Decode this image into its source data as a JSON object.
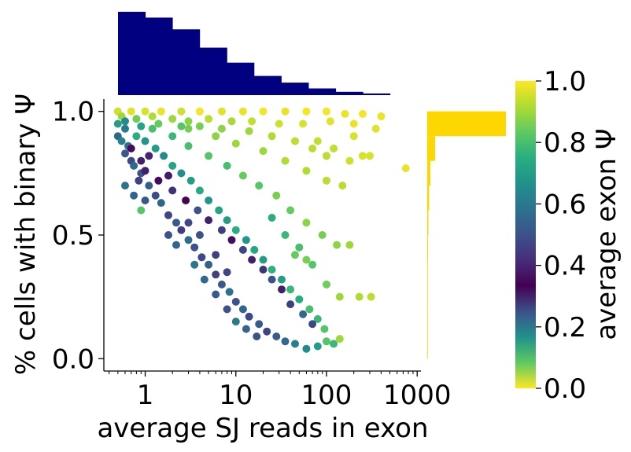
{
  "chart_data": {
    "type": "scatter",
    "title": "",
    "xlabel": "average SJ reads in exon",
    "ylabel": "% cells with binary Ψ",
    "colorbar_label": "average exon Ψ",
    "x_scale": "log",
    "xlim": [
      0.35,
      1100
    ],
    "ylim": [
      -0.05,
      1.05
    ],
    "x_ticks": [
      {
        "value": 1,
        "label": "1"
      },
      {
        "value": 10,
        "label": "10"
      },
      {
        "value": 100,
        "label": "100"
      },
      {
        "value": 1000,
        "label": "1000"
      }
    ],
    "y_ticks": [
      {
        "value": 0.0,
        "label": "0.0"
      },
      {
        "value": 0.5,
        "label": "0.5"
      },
      {
        "value": 1.0,
        "label": "1.0"
      }
    ],
    "colorbar_ticks": [
      {
        "value": 0.0,
        "label": "0.0"
      },
      {
        "value": 0.2,
        "label": "0.2"
      },
      {
        "value": 0.4,
        "label": "0.4"
      },
      {
        "value": 0.6,
        "label": "0.6"
      },
      {
        "value": 0.8,
        "label": "0.8"
      },
      {
        "value": 1.0,
        "label": "1.0"
      }
    ],
    "colormap": [
      "#fde725",
      "#5ec962",
      "#21918c",
      "#3b528b",
      "#440154",
      "#472d7b",
      "#3b528b",
      "#2c728e",
      "#21918c",
      "#28ae80",
      "#5ec962",
      "#addc30",
      "#fde725"
    ],
    "colors": {
      "top_histogram": "#000080",
      "right_histogram": "#ffd700"
    },
    "grid": false,
    "top_histogram": {
      "bins_log10": [
        [
          -0.3,
          0.0
        ],
        [
          0.0,
          0.3
        ],
        [
          0.3,
          0.6
        ],
        [
          0.6,
          0.9
        ],
        [
          0.9,
          1.2
        ],
        [
          1.2,
          1.5
        ],
        [
          1.5,
          1.8
        ],
        [
          1.8,
          2.1
        ],
        [
          2.1,
          2.4
        ],
        [
          2.4,
          2.7
        ]
      ],
      "relative_heights": [
        1.0,
        0.93,
        0.79,
        0.57,
        0.39,
        0.23,
        0.15,
        0.08,
        0.04,
        0.02
      ]
    },
    "right_histogram": {
      "bins": [
        [
          0.9,
          1.0
        ],
        [
          0.8,
          0.9
        ],
        [
          0.7,
          0.8
        ],
        [
          0.6,
          0.7
        ],
        [
          0.5,
          0.6
        ],
        [
          0.4,
          0.5
        ],
        [
          0.3,
          0.4
        ],
        [
          0.2,
          0.3
        ],
        [
          0.1,
          0.2
        ],
        [
          0.0,
          0.1
        ]
      ],
      "relative_widths": [
        1.0,
        0.1,
        0.04,
        0.025,
        0.015,
        0.01,
        0.006,
        0.004,
        0.002,
        0.001
      ]
    },
    "points": [
      {
        "x": 0.5,
        "y": 1.0,
        "c": 0.95
      },
      {
        "x": 0.7,
        "y": 1.0,
        "c": 0.97
      },
      {
        "x": 1.0,
        "y": 1.0,
        "c": 0.96
      },
      {
        "x": 1.5,
        "y": 1.0,
        "c": 0.98
      },
      {
        "x": 2.5,
        "y": 1.0,
        "c": 0.95
      },
      {
        "x": 4.0,
        "y": 1.0,
        "c": 0.99
      },
      {
        "x": 7.0,
        "y": 1.0,
        "c": 0.97
      },
      {
        "x": 12,
        "y": 1.0,
        "c": 0.98
      },
      {
        "x": 20,
        "y": 1.0,
        "c": 0.99
      },
      {
        "x": 35,
        "y": 1.0,
        "c": 0.98
      },
      {
        "x": 60,
        "y": 1.0,
        "c": 0.99
      },
      {
        "x": 100,
        "y": 1.0,
        "c": 0.99
      },
      {
        "x": 160,
        "y": 0.99,
        "c": 0.98
      },
      {
        "x": 250,
        "y": 0.99,
        "c": 0.99
      },
      {
        "x": 400,
        "y": 0.98,
        "c": 0.98
      },
      {
        "x": 0.55,
        "y": 0.98,
        "c": 0.9
      },
      {
        "x": 0.8,
        "y": 0.97,
        "c": 0.85
      },
      {
        "x": 1.2,
        "y": 0.98,
        "c": 0.92
      },
      {
        "x": 2,
        "y": 0.97,
        "c": 0.9
      },
      {
        "x": 3,
        "y": 0.96,
        "c": 0.88
      },
      {
        "x": 5,
        "y": 0.97,
        "c": 0.93
      },
      {
        "x": 9,
        "y": 0.96,
        "c": 0.91
      },
      {
        "x": 15,
        "y": 0.96,
        "c": 0.94
      },
      {
        "x": 30,
        "y": 0.95,
        "c": 0.95
      },
      {
        "x": 55,
        "y": 0.95,
        "c": 0.96
      },
      {
        "x": 110,
        "y": 0.96,
        "c": 0.97
      },
      {
        "x": 200,
        "y": 0.95,
        "c": 0.98
      },
      {
        "x": 0.5,
        "y": 0.95,
        "c": 0.7
      },
      {
        "x": 0.6,
        "y": 0.93,
        "c": 0.6
      },
      {
        "x": 0.5,
        "y": 0.9,
        "c": 0.55
      },
      {
        "x": 0.55,
        "y": 0.88,
        "c": 0.62
      },
      {
        "x": 0.65,
        "y": 0.86,
        "c": 0.58
      },
      {
        "x": 0.6,
        "y": 0.83,
        "c": 0.52
      },
      {
        "x": 0.7,
        "y": 0.8,
        "c": 0.48
      },
      {
        "x": 0.75,
        "y": 0.78,
        "c": 0.56
      },
      {
        "x": 0.9,
        "y": 0.75,
        "c": 0.5
      },
      {
        "x": 0.85,
        "y": 0.72,
        "c": 0.46
      },
      {
        "x": 1.1,
        "y": 0.7,
        "c": 0.53
      },
      {
        "x": 1.3,
        "y": 0.66,
        "c": 0.49
      },
      {
        "x": 1.5,
        "y": 0.63,
        "c": 0.55
      },
      {
        "x": 1.8,
        "y": 0.58,
        "c": 0.47
      },
      {
        "x": 2.2,
        "y": 0.55,
        "c": 0.52
      },
      {
        "x": 2.5,
        "y": 0.52,
        "c": 0.45
      },
      {
        "x": 3.0,
        "y": 0.48,
        "c": 0.57
      },
      {
        "x": 3.5,
        "y": 0.45,
        "c": 0.5
      },
      {
        "x": 4.2,
        "y": 0.41,
        "c": 0.48
      },
      {
        "x": 5,
        "y": 0.38,
        "c": 0.54
      },
      {
        "x": 6,
        "y": 0.34,
        "c": 0.46
      },
      {
        "x": 7,
        "y": 0.3,
        "c": 0.52
      },
      {
        "x": 8.5,
        "y": 0.27,
        "c": 0.58
      },
      {
        "x": 10,
        "y": 0.23,
        "c": 0.5
      },
      {
        "x": 12,
        "y": 0.2,
        "c": 0.55
      },
      {
        "x": 14,
        "y": 0.17,
        "c": 0.48
      },
      {
        "x": 18,
        "y": 0.14,
        "c": 0.52
      },
      {
        "x": 22,
        "y": 0.11,
        "c": 0.47
      },
      {
        "x": 28,
        "y": 0.09,
        "c": 0.53
      },
      {
        "x": 35,
        "y": 0.07,
        "c": 0.56
      },
      {
        "x": 45,
        "y": 0.06,
        "c": 0.62
      },
      {
        "x": 60,
        "y": 0.04,
        "c": 0.65
      },
      {
        "x": 80,
        "y": 0.05,
        "c": 0.7
      },
      {
        "x": 100,
        "y": 0.07,
        "c": 0.82
      },
      {
        "x": 120,
        "y": 0.06,
        "c": 0.78
      },
      {
        "x": 140,
        "y": 0.08,
        "c": 0.9
      },
      {
        "x": 0.8,
        "y": 0.9,
        "c": 0.75
      },
      {
        "x": 1.0,
        "y": 0.88,
        "c": 0.68
      },
      {
        "x": 1.3,
        "y": 0.85,
        "c": 0.7
      },
      {
        "x": 1.6,
        "y": 0.82,
        "c": 0.65
      },
      {
        "x": 2.0,
        "y": 0.78,
        "c": 0.72
      },
      {
        "x": 2.5,
        "y": 0.75,
        "c": 0.66
      },
      {
        "x": 3.2,
        "y": 0.72,
        "c": 0.7
      },
      {
        "x": 4.0,
        "y": 0.68,
        "c": 0.74
      },
      {
        "x": 5.0,
        "y": 0.64,
        "c": 0.68
      },
      {
        "x": 6.5,
        "y": 0.6,
        "c": 0.72
      },
      {
        "x": 8,
        "y": 0.56,
        "c": 0.7
      },
      {
        "x": 10,
        "y": 0.52,
        "c": 0.75
      },
      {
        "x": 13,
        "y": 0.48,
        "c": 0.68
      },
      {
        "x": 16,
        "y": 0.44,
        "c": 0.73
      },
      {
        "x": 20,
        "y": 0.4,
        "c": 0.7
      },
      {
        "x": 25,
        "y": 0.36,
        "c": 0.76
      },
      {
        "x": 32,
        "y": 0.32,
        "c": 0.7
      },
      {
        "x": 40,
        "y": 0.28,
        "c": 0.78
      },
      {
        "x": 50,
        "y": 0.24,
        "c": 0.74
      },
      {
        "x": 65,
        "y": 0.2,
        "c": 0.8
      },
      {
        "x": 80,
        "y": 0.16,
        "c": 0.78
      },
      {
        "x": 95,
        "y": 0.12,
        "c": 0.82
      },
      {
        "x": 1.2,
        "y": 0.93,
        "c": 0.8
      },
      {
        "x": 2.0,
        "y": 0.9,
        "c": 0.78
      },
      {
        "x": 3.0,
        "y": 0.86,
        "c": 0.8
      },
      {
        "x": 5.0,
        "y": 0.82,
        "c": 0.82
      },
      {
        "x": 8,
        "y": 0.78,
        "c": 0.8
      },
      {
        "x": 12,
        "y": 0.74,
        "c": 0.84
      },
      {
        "x": 18,
        "y": 0.7,
        "c": 0.82
      },
      {
        "x": 28,
        "y": 0.66,
        "c": 0.86
      },
      {
        "x": 40,
        "y": 0.6,
        "c": 0.84
      },
      {
        "x": 60,
        "y": 0.55,
        "c": 0.88
      },
      {
        "x": 90,
        "y": 0.5,
        "c": 0.86
      },
      {
        "x": 130,
        "y": 0.46,
        "c": 0.88
      },
      {
        "x": 180,
        "y": 0.46,
        "c": 0.9
      },
      {
        "x": 60,
        "y": 0.4,
        "c": 0.86
      },
      {
        "x": 45,
        "y": 0.42,
        "c": 0.84
      },
      {
        "x": 3,
        "y": 0.93,
        "c": 0.86
      },
      {
        "x": 6,
        "y": 0.9,
        "c": 0.88
      },
      {
        "x": 10,
        "y": 0.87,
        "c": 0.9
      },
      {
        "x": 20,
        "y": 0.84,
        "c": 0.9
      },
      {
        "x": 35,
        "y": 0.8,
        "c": 0.92
      },
      {
        "x": 60,
        "y": 0.76,
        "c": 0.92
      },
      {
        "x": 100,
        "y": 0.72,
        "c": 0.93
      },
      {
        "x": 150,
        "y": 0.7,
        "c": 0.93
      },
      {
        "x": 250,
        "y": 0.82,
        "c": 0.96
      },
      {
        "x": 300,
        "y": 0.82,
        "c": 0.96
      },
      {
        "x": 750,
        "y": 0.77,
        "c": 0.98
      },
      {
        "x": 180,
        "y": 0.8,
        "c": 0.95
      },
      {
        "x": 120,
        "y": 0.85,
        "c": 0.94
      },
      {
        "x": 80,
        "y": 0.88,
        "c": 0.94
      },
      {
        "x": 200,
        "y": 0.9,
        "c": 0.96
      },
      {
        "x": 350,
        "y": 0.93,
        "c": 0.97
      },
      {
        "x": 230,
        "y": 0.25,
        "c": 0.92
      },
      {
        "x": 310,
        "y": 0.25,
        "c": 0.93
      },
      {
        "x": 1.0,
        "y": 0.76,
        "c": 0.3
      },
      {
        "x": 1.4,
        "y": 0.72,
        "c": 0.35
      },
      {
        "x": 2.0,
        "y": 0.68,
        "c": 0.28
      },
      {
        "x": 2.8,
        "y": 0.64,
        "c": 0.33
      },
      {
        "x": 3.8,
        "y": 0.6,
        "c": 0.25
      },
      {
        "x": 5,
        "y": 0.56,
        "c": 0.3
      },
      {
        "x": 7,
        "y": 0.52,
        "c": 0.27
      },
      {
        "x": 9,
        "y": 0.48,
        "c": 0.32
      },
      {
        "x": 12,
        "y": 0.44,
        "c": 0.26
      },
      {
        "x": 15,
        "y": 0.4,
        "c": 0.3
      },
      {
        "x": 20,
        "y": 0.36,
        "c": 0.28
      },
      {
        "x": 25,
        "y": 0.32,
        "c": 0.25
      },
      {
        "x": 32,
        "y": 0.28,
        "c": 0.3
      },
      {
        "x": 40,
        "y": 0.22,
        "c": 0.27
      },
      {
        "x": 55,
        "y": 0.18,
        "c": 0.22
      },
      {
        "x": 70,
        "y": 0.14,
        "c": 0.26
      },
      {
        "x": 0.7,
        "y": 0.85,
        "c": 0.35
      },
      {
        "x": 0.9,
        "y": 0.8,
        "c": 0.3
      },
      {
        "x": 1.1,
        "y": 0.82,
        "c": 0.4
      },
      {
        "x": 1.8,
        "y": 0.74,
        "c": 0.38
      },
      {
        "x": 0.6,
        "y": 0.7,
        "c": 0.58
      },
      {
        "x": 0.75,
        "y": 0.66,
        "c": 0.55
      },
      {
        "x": 1.0,
        "y": 0.64,
        "c": 0.52
      },
      {
        "x": 1.8,
        "y": 0.5,
        "c": 0.5
      },
      {
        "x": 2.2,
        "y": 0.46,
        "c": 0.55
      },
      {
        "x": 3.5,
        "y": 0.38,
        "c": 0.6
      },
      {
        "x": 4.5,
        "y": 0.32,
        "c": 0.56
      },
      {
        "x": 6,
        "y": 0.26,
        "c": 0.52
      },
      {
        "x": 8,
        "y": 0.2,
        "c": 0.5
      },
      {
        "x": 10,
        "y": 0.15,
        "c": 0.6
      },
      {
        "x": 13,
        "y": 0.12,
        "c": 0.55
      },
      {
        "x": 17,
        "y": 0.09,
        "c": 0.5
      },
      {
        "x": 4,
        "y": 0.5,
        "c": 0.5
      },
      {
        "x": 3,
        "y": 0.55,
        "c": 0.48
      },
      {
        "x": 6,
        "y": 0.42,
        "c": 0.46
      },
      {
        "x": 8,
        "y": 0.35,
        "c": 0.47
      },
      {
        "x": 0.9,
        "y": 0.6,
        "c": 0.82
      },
      {
        "x": 0.6,
        "y": 0.96,
        "c": 0.65
      },
      {
        "x": 0.9,
        "y": 0.94,
        "c": 0.72
      },
      {
        "x": 1.4,
        "y": 0.95,
        "c": 0.84
      },
      {
        "x": 2.5,
        "y": 0.94,
        "c": 0.82
      },
      {
        "x": 4,
        "y": 0.94,
        "c": 0.86
      },
      {
        "x": 7,
        "y": 0.93,
        "c": 0.88
      },
      {
        "x": 14,
        "y": 0.92,
        "c": 0.9
      },
      {
        "x": 25,
        "y": 0.9,
        "c": 0.92
      },
      {
        "x": 45,
        "y": 0.88,
        "c": 0.93
      },
      {
        "x": 70,
        "y": 0.85,
        "c": 0.93
      },
      {
        "x": 100,
        "y": 0.82,
        "c": 0.93
      },
      {
        "x": 25,
        "y": 0.57,
        "c": 0.75
      },
      {
        "x": 35,
        "y": 0.5,
        "c": 0.78
      },
      {
        "x": 50,
        "y": 0.45,
        "c": 0.8
      },
      {
        "x": 70,
        "y": 0.38,
        "c": 0.82
      },
      {
        "x": 100,
        "y": 0.3,
        "c": 0.85
      },
      {
        "x": 140,
        "y": 0.25,
        "c": 0.9
      }
    ]
  }
}
